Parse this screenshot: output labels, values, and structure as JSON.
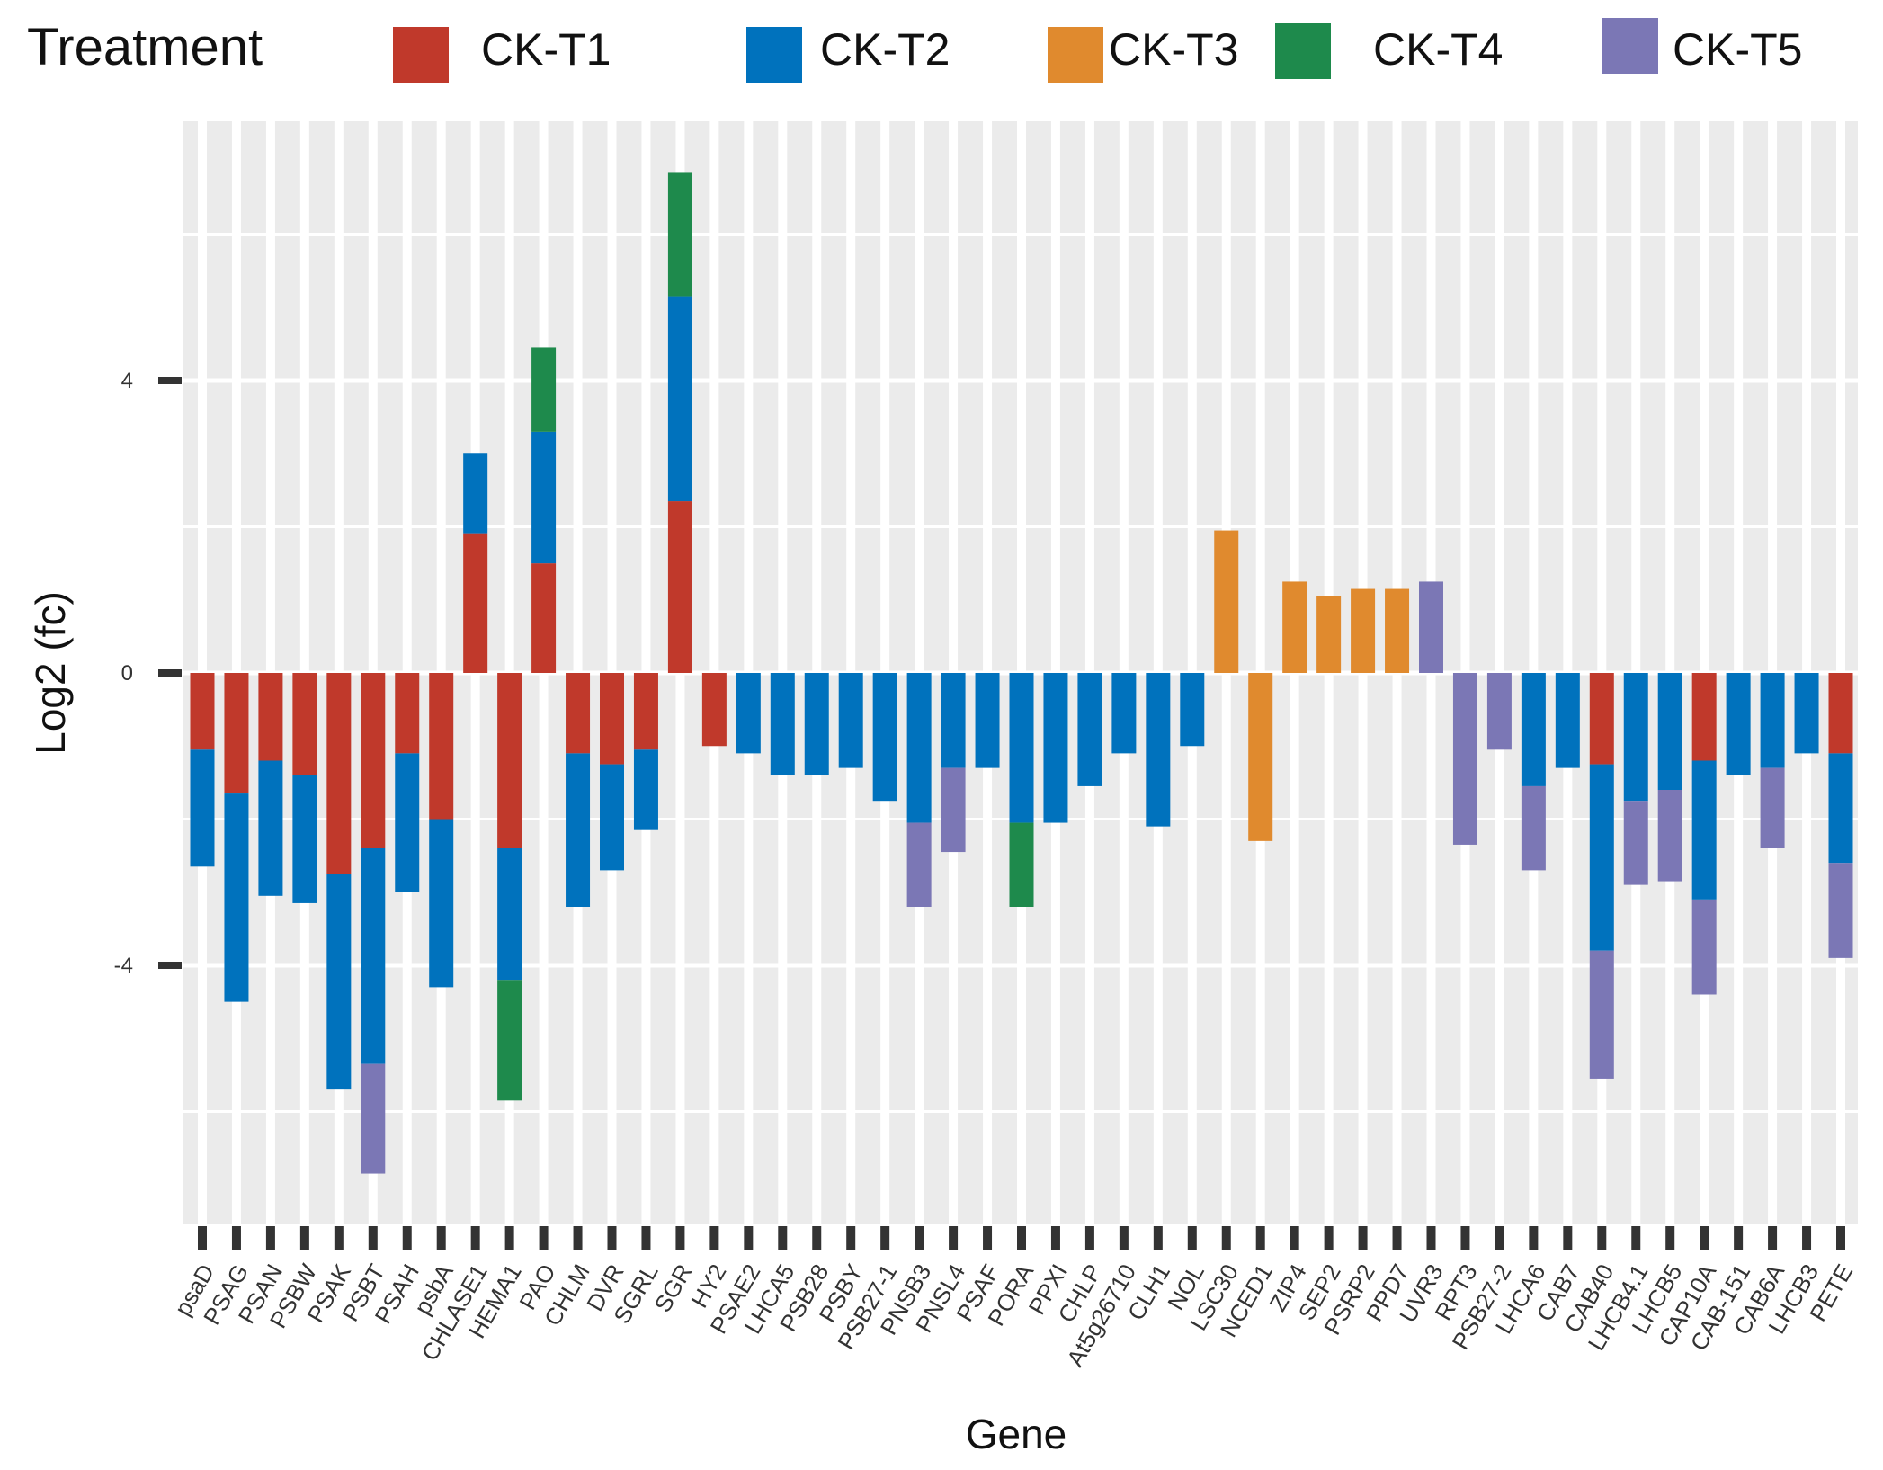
{
  "chart_data": {
    "type": "bar",
    "stacked": true,
    "title": "",
    "xlabel": "Gene",
    "ylabel": "Log2 (fc)",
    "ylim": [
      -7.5,
      7.5
    ],
    "yticks": [
      -4,
      0,
      4
    ],
    "grid": true,
    "legend": {
      "title": "Treatment",
      "position": "top",
      "entries": [
        {
          "name": "CK-T1",
          "color": "#C0392B"
        },
        {
          "name": "CK-T2",
          "color": "#0072BD"
        },
        {
          "name": "CK-T3",
          "color": "#E08A2E"
        },
        {
          "name": "CK-T4",
          "color": "#1E8A4C"
        },
        {
          "name": "CK-T5",
          "color": "#7B77B5"
        }
      ]
    },
    "categories": [
      "psaD",
      "PSAG",
      "PSAN",
      "PSBW",
      "PSAK",
      "PSBT",
      "PSAH",
      "psbA",
      "CHLASE1",
      "HEMA1",
      "PAO",
      "CHLM",
      "DVR",
      "SGRL",
      "SGR",
      "HY2",
      "PSAE2",
      "LHCA5",
      "PSB28",
      "PSBY",
      "PSB27-1",
      "PNSB3",
      "PNSL4",
      "PSAF",
      "PORA",
      "PPXI",
      "CHLP",
      "At5g26710",
      "CLH1",
      "NOL",
      "LSC30",
      "NCED1",
      "ZIP4",
      "SEP2",
      "PSRP2",
      "PPD7",
      "UVR3",
      "RPT3",
      "PSB27-2",
      "LHCA6",
      "CAB7",
      "CAB40",
      "LHCB4.1",
      "LHCB5",
      "CAP10A",
      "CAB-151",
      "CAB6A",
      "LHCB3",
      "PETE"
    ],
    "series": [
      {
        "name": "CK-T1",
        "values": [
          -1.05,
          -1.65,
          -1.2,
          -1.4,
          -2.75,
          -2.4,
          -1.1,
          -2.0,
          1.9,
          -2.4,
          1.5,
          -1.1,
          -1.25,
          -1.05,
          2.35,
          -1.0,
          0,
          0,
          0,
          0,
          0,
          0,
          0,
          0,
          0,
          0,
          0,
          0,
          0,
          0,
          0,
          0,
          0,
          0,
          0,
          0,
          0,
          0,
          0,
          0,
          0,
          -1.25,
          0,
          0,
          -1.2,
          0,
          0,
          0,
          -1.1
        ]
      },
      {
        "name": "CK-T2",
        "values": [
          -1.6,
          -2.85,
          -1.85,
          -1.75,
          -2.95,
          -2.95,
          -1.9,
          -2.3,
          1.1,
          -1.8,
          1.8,
          -2.1,
          -1.45,
          -1.1,
          2.8,
          0,
          -1.1,
          -1.4,
          -1.4,
          -1.3,
          -1.75,
          -2.05,
          -1.3,
          -1.3,
          -2.05,
          -2.05,
          -1.55,
          -1.1,
          -2.1,
          -1.0,
          0,
          0,
          0,
          0,
          0,
          0,
          0,
          0,
          0,
          -1.55,
          -1.3,
          -2.55,
          -1.75,
          -1.6,
          -1.9,
          -1.4,
          -1.3,
          -1.1,
          -1.5
        ]
      },
      {
        "name": "CK-T3",
        "values": [
          0,
          0,
          0,
          0,
          0,
          0,
          0,
          0,
          0,
          0,
          0,
          0,
          0,
          0,
          0,
          0,
          0,
          0,
          0,
          0,
          0,
          0,
          0,
          0,
          0,
          0,
          0,
          0,
          0,
          0,
          1.95,
          -2.3,
          1.25,
          1.05,
          1.15,
          1.15,
          0,
          0,
          0,
          0,
          0,
          0,
          0,
          0,
          0,
          0,
          0,
          0,
          0
        ]
      },
      {
        "name": "CK-T4",
        "values": [
          0,
          0,
          0,
          0,
          0,
          0,
          0,
          0,
          0,
          -1.65,
          1.15,
          0,
          0,
          0,
          1.7,
          0,
          0,
          0,
          0,
          0,
          0,
          0,
          0,
          0,
          -1.15,
          0,
          0,
          0,
          0,
          0,
          0,
          0,
          0,
          0,
          0,
          0,
          0,
          0,
          0,
          0,
          0,
          0,
          0,
          0,
          0,
          0,
          0,
          0,
          0
        ]
      },
      {
        "name": "CK-T5",
        "values": [
          0,
          0,
          0,
          0,
          0,
          -1.5,
          0,
          0,
          0,
          0,
          0,
          0,
          0,
          0,
          0,
          0,
          0,
          0,
          0,
          0,
          0,
          -1.15,
          -1.15,
          0,
          0,
          0,
          0,
          0,
          0,
          0,
          0,
          0,
          0,
          0,
          0,
          0,
          1.25,
          -2.35,
          -1.05,
          -1.15,
          0,
          -1.75,
          -1.15,
          -1.25,
          -1.3,
          0,
          -1.1,
          0,
          -1.3
        ]
      }
    ]
  }
}
